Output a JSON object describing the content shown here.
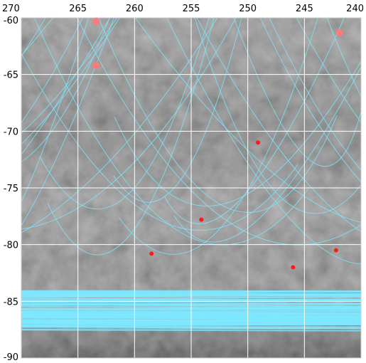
{
  "map": {
    "lon_ticks": [
      "270",
      "265",
      "260",
      "255",
      "250",
      "245",
      "240"
    ],
    "lat_ticks": [
      "-60",
      "-65",
      "-70",
      "-75",
      "-80",
      "-85",
      "-90"
    ],
    "lon_range": [
      270,
      240
    ],
    "lat_range": [
      -60,
      -90
    ],
    "grid": true,
    "colors": {
      "background": "#ffffff",
      "grid": "#ffffff",
      "track": "#7ee8ff",
      "small_marker": "#ff1a1a",
      "large_marker": "#ff7a7a",
      "terrain_dark": "#3a3a3a",
      "terrain_light": "#a8a8a8"
    },
    "markers": [
      {
        "lon": 263.4,
        "lat": -60.3,
        "kind": "large"
      },
      {
        "lon": 263.4,
        "lat": -64.2,
        "kind": "large"
      },
      {
        "lon": 241.9,
        "lat": -61.3,
        "kind": "large"
      },
      {
        "lon": 249.1,
        "lat": -71.0,
        "kind": "small"
      },
      {
        "lon": 254.1,
        "lat": -77.8,
        "kind": "small"
      },
      {
        "lon": 258.5,
        "lat": -80.8,
        "kind": "small"
      },
      {
        "lon": 242.2,
        "lat": -80.5,
        "kind": "small"
      },
      {
        "lon": 246.0,
        "lat": -82.0,
        "kind": "small"
      }
    ]
  }
}
